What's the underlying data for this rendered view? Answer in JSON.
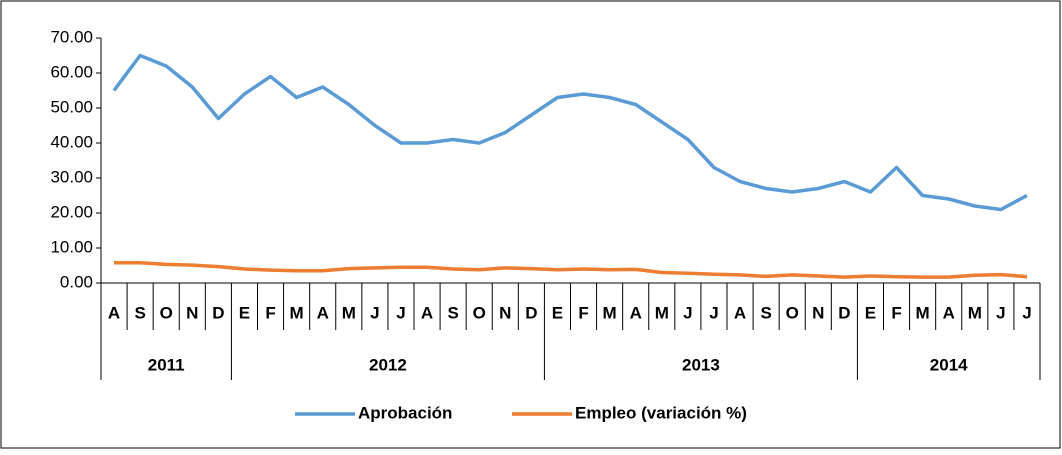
{
  "chart_data": {
    "type": "line",
    "groups": [
      {
        "name": "2011",
        "categories": [
          "A",
          "S",
          "O",
          "N",
          "D"
        ]
      },
      {
        "name": "2012",
        "categories": [
          "E",
          "F",
          "M",
          "A",
          "M",
          "J",
          "J",
          "A",
          "S",
          "O",
          "N",
          "D"
        ]
      },
      {
        "name": "2013",
        "categories": [
          "E",
          "F",
          "M",
          "A",
          "M",
          "J",
          "J",
          "A",
          "S",
          "O",
          "N",
          "D"
        ]
      },
      {
        "name": "2014",
        "categories": [
          "E",
          "F",
          "M",
          "A",
          "M",
          "J",
          "J"
        ]
      }
    ],
    "series": [
      {
        "name": "Aprobación",
        "color": "#5b9bd5",
        "values": [
          55,
          65,
          62,
          56,
          47,
          54,
          59,
          53,
          56,
          51,
          45,
          40,
          40,
          41,
          40,
          43,
          48,
          53,
          54,
          53,
          51,
          46,
          41,
          33,
          29,
          27,
          26,
          27,
          29,
          26,
          33,
          25,
          24,
          22,
          21,
          25
        ]
      },
      {
        "name": "Empleo (variación %)",
        "color": "#ed7d31",
        "values": [
          5.8,
          5.8,
          5.3,
          5.1,
          4.7,
          4.0,
          3.7,
          3.5,
          3.5,
          4.1,
          4.3,
          4.5,
          4.5,
          4.0,
          3.8,
          4.3,
          4.1,
          3.8,
          4.0,
          3.8,
          3.9,
          3.0,
          2.8,
          2.5,
          2.3,
          1.9,
          2.3,
          2.0,
          1.7,
          2.0,
          1.8,
          1.7,
          1.7,
          2.2,
          2.4,
          1.8
        ]
      }
    ],
    "ylim": [
      0,
      70
    ],
    "yticks": [
      {
        "value": 0,
        "label": "0.00"
      },
      {
        "value": 10,
        "label": "10.00"
      },
      {
        "value": 20,
        "label": "20.00"
      },
      {
        "value": 30,
        "label": "30.00"
      },
      {
        "value": 40,
        "label": "40.00"
      },
      {
        "value": 50,
        "label": "50.00"
      },
      {
        "value": 60,
        "label": "60.00"
      },
      {
        "value": 70,
        "label": "70.00"
      }
    ],
    "legend": "bottom"
  }
}
